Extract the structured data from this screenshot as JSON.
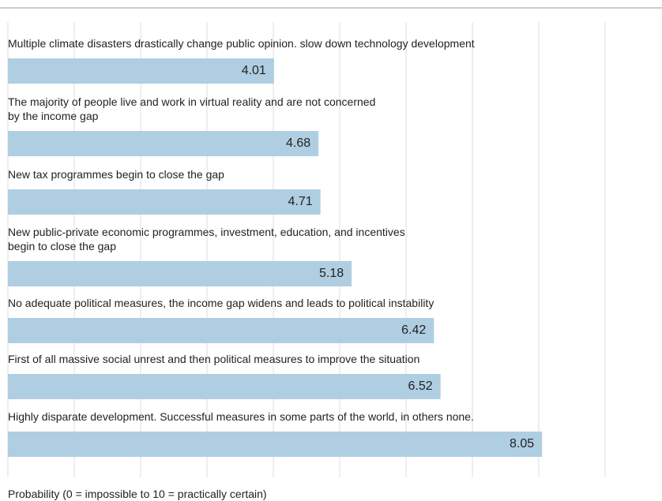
{
  "chart_data": {
    "type": "bar",
    "orientation": "horizontal",
    "categories": [
      "Multiple climate disasters drastically change public opinion. slow down technology development",
      "The majority of people live and work in virtual reality and are not concerned\nby the income gap",
      "New tax programmes begin to close the gap",
      "New public-private economic programmes, investment, education, and incentives\nbegin to close the gap",
      "No adequate political measures, the income gap widens and leads to political instability",
      "First of all massive social unrest and then political measures to improve the situation",
      "Highly disparate development. Successful measures in some parts of the world, in others none."
    ],
    "values": [
      4.01,
      4.68,
      4.71,
      5.18,
      6.42,
      6.52,
      8.05
    ],
    "color": "#afcee2",
    "xlim": [
      0,
      10
    ],
    "xticks": [
      0,
      1,
      2,
      3,
      4,
      5,
      6,
      7,
      8,
      9
    ],
    "grid": true,
    "x_label": "Probability (0 = impossible to 10 = practically certain)"
  }
}
